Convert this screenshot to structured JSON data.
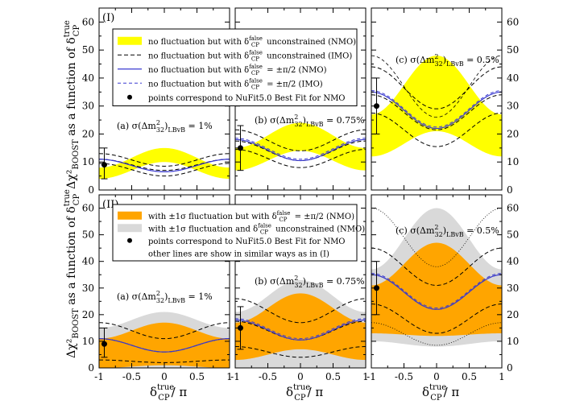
{
  "y_axis_title_main": "Δχ²",
  "y_axis_title_sub": "BOOST",
  "y_axis_title_rest": " as a function of δ",
  "y_axis_title_sup": "true",
  "y_axis_title_sub2": "CP",
  "x_axis_title_main": "δ",
  "x_axis_title_sup": "true",
  "x_axis_title_sub": "CP",
  "x_axis_title_rest": "/ π",
  "row_labels": [
    "(I)",
    "(II)"
  ],
  "panel_labels": {
    "a": {
      "prefix": "(a) σ(Δm",
      "sup": "2",
      "sub1": "32",
      "mid": ")",
      "sub2": "LBvB",
      "value": " = 1%"
    },
    "b": {
      "prefix": "(b) σ(Δm",
      "sup": "2",
      "sub1": "32",
      "mid": ")",
      "sub2": "LBvB",
      "value": " = 0.75%"
    },
    "c": {
      "prefix": "(c) σ(Δm",
      "sup": "2",
      "sub1": "32",
      "mid": ")",
      "sub2": "LBvB",
      "value": " = 0.5%"
    }
  },
  "legend_top": [
    {
      "text": "no fluctuation but with δ",
      "sup": "false",
      "sub": "CP",
      "tail": " unconstrained (NMO)",
      "style": "yellow-fill"
    },
    {
      "text": "no fluctuation but with δ",
      "sup": "false",
      "sub": "CP",
      "tail": " unconstrained (IMO)",
      "style": "black-dash"
    },
    {
      "text": "no fluctuation but with δ",
      "sup": "false",
      "sub": "CP",
      "tail": " = ±π/2 (NMO)",
      "style": "blue-solid"
    },
    {
      "text": "no fluctuation but with δ",
      "sup": "false",
      "sub": "CP",
      "tail": " = ±π/2 (IMO)",
      "style": "blue-dash"
    },
    {
      "text": "points correspond to NuFit5.0 Best Fit for NMO",
      "sup": "",
      "sub": "",
      "tail": "",
      "style": "dot"
    }
  ],
  "legend_bottom": [
    {
      "text": "with ±1σ fluctuation but with δ",
      "sup": "false",
      "sub": "CP",
      "tail": " = ±π/2 (NMO)",
      "style": "orange-fill"
    },
    {
      "text": "with ±1σ fluctuation and δ",
      "sup": "false",
      "sub": "CP",
      "tail": " unconstrained (NMO)",
      "style": "grey-fill"
    },
    {
      "text": "points correspond to NuFit5.0 Best Fit for NMO",
      "sup": "",
      "sub": "",
      "tail": "",
      "style": "dot"
    },
    {
      "text": "other lines are show in similar ways as in (I)",
      "sup": "",
      "sub": "",
      "tail": "",
      "style": "none"
    }
  ],
  "colors": {
    "yellow": "#ffff00",
    "orange": "#ffa500",
    "grey": "#d9d9d9",
    "blue": "#3a3ad0",
    "black": "#000000"
  },
  "chart_data": [
    {
      "type": "area",
      "id": "Ia",
      "xlim": [
        -1,
        1
      ],
      "ylim": [
        0,
        65
      ],
      "xticks": [
        -1,
        -0.5,
        0,
        0.5,
        1
      ],
      "yticks": [
        0,
        10,
        20,
        30,
        40,
        50,
        60
      ],
      "band_yellow": {
        "min_edge": 4,
        "min_center": 10,
        "max_edge": 8,
        "max_center": 15
      },
      "lines_black_dash": [
        {
          "center": 5,
          "edge": 9.5
        },
        {
          "center": 7,
          "edge": 11
        },
        {
          "center": 8.5,
          "edge": 13
        }
      ],
      "line_blue_solid": {
        "center": 6.5,
        "edge": 11
      },
      "line_blue_dash": {
        "center": 6.5,
        "edge": 11
      },
      "point": {
        "x": -0.92,
        "y": 9,
        "yerr": [
          4,
          15
        ]
      }
    },
    {
      "type": "area",
      "id": "Ib",
      "xlim": [
        -1,
        1
      ],
      "ylim": [
        0,
        65
      ],
      "xticks": [
        -1,
        -0.5,
        0,
        0.5,
        1
      ],
      "yticks": [
        0,
        10,
        20,
        30,
        40,
        50,
        60
      ],
      "band_yellow": {
        "min_edge": 7,
        "min_center": 14,
        "max_edge": 15,
        "max_center": 24
      },
      "lines_black_dash": [
        {
          "center": 8,
          "edge": 14.5
        },
        {
          "center": 10.5,
          "edge": 17.5
        },
        {
          "center": 14,
          "edge": 21.5
        }
      ],
      "line_blue_solid": {
        "center": 10.5,
        "edge": 18
      },
      "line_blue_dash": {
        "center": 11,
        "edge": 18.5
      },
      "point": {
        "x": -0.92,
        "y": 15,
        "yerr": [
          7,
          23
        ]
      }
    },
    {
      "type": "area",
      "id": "Ic",
      "xlim": [
        -1,
        1
      ],
      "ylim": [
        0,
        65
      ],
      "xticks": [
        -1,
        -0.5,
        0,
        0.5,
        1
      ],
      "yticks": [
        0,
        10,
        20,
        30,
        40,
        50,
        60
      ],
      "band_yellow": {
        "min_edge": 12,
        "min_center": 21,
        "max_edge": 27,
        "max_center": 48
      },
      "lines_black_dash": [
        {
          "center": 15.5,
          "edge": 27.5
        },
        {
          "center": 21.5,
          "edge": 34
        },
        {
          "center": 29,
          "edge": 44
        }
      ],
      "line_blue_solid": {
        "center": 22,
        "edge": 35
      },
      "line_blue_dash": {
        "center": 22.5,
        "edge": 35.5
      },
      "extra_dashed": {
        "center": 26,
        "edge": 48
      },
      "point": {
        "x": -0.92,
        "y": 30,
        "yerr": [
          20,
          40
        ]
      }
    },
    {
      "type": "area",
      "id": "IIa",
      "xlim": [
        -1,
        1
      ],
      "ylim": [
        0,
        65
      ],
      "xticks": [
        -1,
        -0.5,
        0,
        0.5,
        1
      ],
      "yticks": [
        0,
        10,
        20,
        30,
        40,
        50,
        60
      ],
      "band_grey": {
        "min_edge": 0,
        "min_center": 0,
        "max_edge": 15,
        "max_center": 21
      },
      "band_orange": {
        "min_edge": 0,
        "min_center": 1,
        "max_edge": 11,
        "max_center": 17
      },
      "lines_black_dash": [
        {
          "center": 2,
          "edge": 3
        },
        {
          "center": 6,
          "edge": 11
        },
        {
          "center": 11,
          "edge": 17
        }
      ],
      "line_blue_solid": {
        "center": 6,
        "edge": 11
      },
      "line_blue_dash": {
        "center": 6,
        "edge": 11
      },
      "point": {
        "x": -0.92,
        "y": 9,
        "yerr": [
          4,
          15
        ]
      }
    },
    {
      "type": "area",
      "id": "IIb",
      "xlim": [
        -1,
        1
      ],
      "ylim": [
        0,
        65
      ],
      "xticks": [
        -1,
        -0.5,
        0,
        0.5,
        1
      ],
      "yticks": [
        0,
        10,
        20,
        30,
        40,
        50,
        60
      ],
      "band_grey": {
        "min_edge": 0,
        "min_center": 0,
        "max_edge": 21,
        "max_center": 33
      },
      "band_orange": {
        "min_edge": 3,
        "min_center": 7,
        "max_edge": 17,
        "max_center": 28
      },
      "lines_black_dash": [
        {
          "center": 4,
          "edge": 8
        },
        {
          "center": 10.5,
          "edge": 17.5
        },
        {
          "center": 17,
          "edge": 26
        }
      ],
      "line_blue_solid": {
        "center": 10.5,
        "edge": 18
      },
      "line_blue_dash": {
        "center": 11,
        "edge": 18.5
      },
      "point": {
        "x": -0.92,
        "y": 15,
        "yerr": [
          7,
          23
        ]
      }
    },
    {
      "type": "area",
      "id": "IIc",
      "xlim": [
        -1,
        1
      ],
      "ylim": [
        0,
        65
      ],
      "xticks": [
        -1,
        -0.5,
        0,
        0.5,
        1
      ],
      "yticks": [
        0,
        10,
        20,
        30,
        40,
        50,
        60
      ],
      "band_grey": {
        "min_edge": 10,
        "min_center": 8,
        "max_edge": 37,
        "max_center": 60
      },
      "band_orange": {
        "min_edge": 13,
        "min_center": 12,
        "max_edge": 31,
        "max_center": 47
      },
      "lines_black_dash": [
        {
          "center": 13,
          "edge": 24
        },
        {
          "center": 22,
          "edge": 35
        },
        {
          "center": 31,
          "edge": 45
        }
      ],
      "line_blue_solid": {
        "center": 22,
        "edge": 35
      },
      "line_blue_dash": {
        "center": 22.5,
        "edge": 35.5
      },
      "lines_dotted": [
        {
          "center": 8.5,
          "edge": 17
        },
        {
          "center": 38,
          "edge": 60
        }
      ],
      "point": {
        "x": -0.92,
        "y": 30,
        "yerr": [
          20,
          40
        ]
      }
    }
  ]
}
